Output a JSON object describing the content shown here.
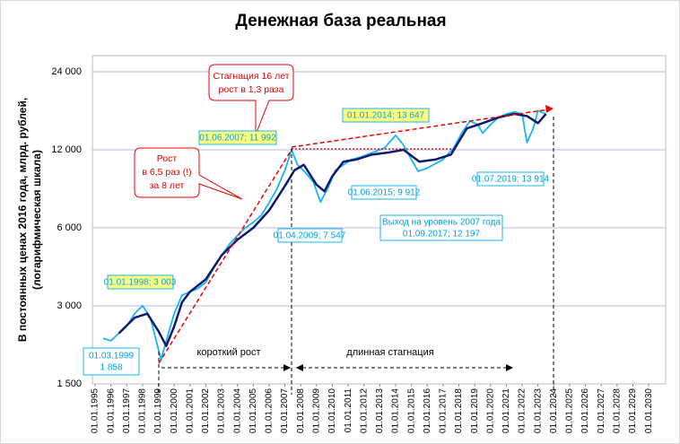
{
  "chart_data": {
    "type": "line",
    "title": "Денежная база реальная",
    "ylabel": [
      "В постоянных ценах 2016 года, млрд. рублей,",
      "(логарифмическая шкала)"
    ],
    "log_scale": true,
    "grid": true,
    "ylim": [
      1500,
      27700
    ],
    "yticks": [
      {
        "value": 1500,
        "label": "1 500"
      },
      {
        "value": 3000,
        "label": "3 000"
      },
      {
        "value": 6000,
        "label": "6 000"
      },
      {
        "value": 12000,
        "label": "12 000"
      },
      {
        "value": 24000,
        "label": "24 000"
      }
    ],
    "xlim": [
      1994.83,
      2031.07
    ],
    "xticks": [
      {
        "value": 1995,
        "label": "01.01.1995"
      },
      {
        "value": 1996,
        "label": "01.01.1996"
      },
      {
        "value": 1997,
        "label": "01.01.1997"
      },
      {
        "value": 1998,
        "label": "01.01.1998"
      },
      {
        "value": 1999,
        "label": "01.01.1999"
      },
      {
        "value": 2000,
        "label": "01.01.2000"
      },
      {
        "value": 2001,
        "label": "01.01.2001"
      },
      {
        "value": 2002,
        "label": "01.01.2002"
      },
      {
        "value": 2003,
        "label": "01.01.2003"
      },
      {
        "value": 2004,
        "label": "01.01.2004"
      },
      {
        "value": 2005,
        "label": "01.01.2005"
      },
      {
        "value": 2006,
        "label": "01.01.2006"
      },
      {
        "value": 2007,
        "label": "01.01.2007"
      },
      {
        "value": 2008,
        "label": "01.01.2008"
      },
      {
        "value": 2009,
        "label": "01.01.2009"
      },
      {
        "value": 2010,
        "label": "01.01.2010"
      },
      {
        "value": 2011,
        "label": "01.01.2011"
      },
      {
        "value": 2012,
        "label": "01.01.2012"
      },
      {
        "value": 2013,
        "label": "01.01.2013"
      },
      {
        "value": 2014,
        "label": "01.01.2014"
      },
      {
        "value": 2015,
        "label": "01.01.2015"
      },
      {
        "value": 2016,
        "label": "01.01.2016"
      },
      {
        "value": 2017,
        "label": "01.01.2017"
      },
      {
        "value": 2018,
        "label": "01.01.2018"
      },
      {
        "value": 2019,
        "label": "01.01.2019"
      },
      {
        "value": 2020,
        "label": "01.01.2020"
      },
      {
        "value": 2021,
        "label": "01.01.2021"
      },
      {
        "value": 2022,
        "label": "01.01.2022"
      },
      {
        "value": 2023,
        "label": "01.01.2023"
      },
      {
        "value": 2024,
        "label": "01.01.2024"
      },
      {
        "value": 2025,
        "label": "01.01.2025"
      },
      {
        "value": 2026,
        "label": "01.01.2026"
      },
      {
        "value": 2027,
        "label": "01.01.2027"
      },
      {
        "value": 2028,
        "label": "01.01.2028"
      },
      {
        "value": 2029,
        "label": "01.01.2029"
      },
      {
        "value": 2030,
        "label": "01.01.2030"
      }
    ],
    "series": [
      {
        "color": "#19b4ee",
        "x": [
          1995.5,
          1996,
          1996.5,
          1997,
          1997.5,
          1998,
          1998.5,
          1999.17,
          1999.5,
          2000,
          2000.5,
          2001,
          2001.5,
          2002,
          2002.5,
          2003,
          2003.5,
          2004,
          2004.5,
          2005,
          2005.5,
          2006,
          2006.5,
          2007,
          2007.42,
          2007.8,
          2008.3,
          2008.8,
          2009.25,
          2009.7,
          2010.2,
          2010.7,
          2011.2,
          2011.7,
          2012.2,
          2012.7,
          2013.3,
          2014,
          2014.5,
          2015,
          2015.42,
          2016,
          2016.5,
          2017,
          2017.67,
          2018.2,
          2018.7,
          2019.2,
          2019.5,
          2020,
          2020.5,
          2021,
          2021.5,
          2022,
          2022.3,
          2022.7,
          2023,
          2023.5
        ],
        "values": [
          2250,
          2200,
          2350,
          2500,
          2800,
          3003,
          2700,
          1858,
          2200,
          2800,
          3300,
          3400,
          3500,
          3700,
          4200,
          4700,
          5200,
          5600,
          6000,
          6300,
          6700,
          7500,
          8500,
          10000,
          11992,
          10500,
          9800,
          9000,
          7547,
          8500,
          10000,
          10500,
          11000,
          11200,
          11500,
          11800,
          12200,
          13647,
          12500,
          11000,
          9912,
          10200,
          10600,
          11000,
          12197,
          14000,
          15500,
          15000,
          13914,
          15000,
          16000,
          16500,
          16800,
          16500,
          12800,
          14500,
          17000,
          16500
        ]
      },
      {
        "color": "#0d1a6e",
        "x": [
          1996.5,
          1997.5,
          1998.3,
          1999,
          1999.5,
          2000,
          2000.5,
          2001,
          2002,
          2003,
          2004,
          2005,
          2006,
          2007,
          2007.6,
          2008.2,
          2009,
          2009.5,
          2010,
          2010.7,
          2011.5,
          2012.5,
          2013.5,
          2014.5,
          2015.5,
          2016.5,
          2017.5,
          2018.5,
          2019.5,
          2020.5,
          2021.5,
          2022.3,
          2023,
          2023.5
        ],
        "values": [
          2350,
          2700,
          2800,
          2400,
          2100,
          2500,
          3100,
          3400,
          3800,
          4700,
          5400,
          6000,
          7000,
          8700,
          10000,
          10500,
          8800,
          8300,
          9500,
          10800,
          11000,
          11500,
          11700,
          12000,
          10800,
          11000,
          11500,
          14500,
          15200,
          16000,
          16500,
          16200,
          15200,
          16500
        ]
      }
    ],
    "annotations": [
      "Стагнация 16 лет",
      "рост в 1,3 раза",
      "Рост",
      "в 6,5 раз (!)",
      "за 8 лет",
      "01.01.2014; 13 647",
      "01.06.2007; 11 992",
      "01.01.1998; 3 003",
      "01.03.1999",
      "1 858",
      "01.04.2009; 7 547",
      "01.06.2015; 9 912",
      "Выход на уровень 2007 года",
      "01.09.2017; 12 197",
      "01.07.2019; 13 914",
      "короткий рост",
      "длинная стагнация"
    ]
  }
}
